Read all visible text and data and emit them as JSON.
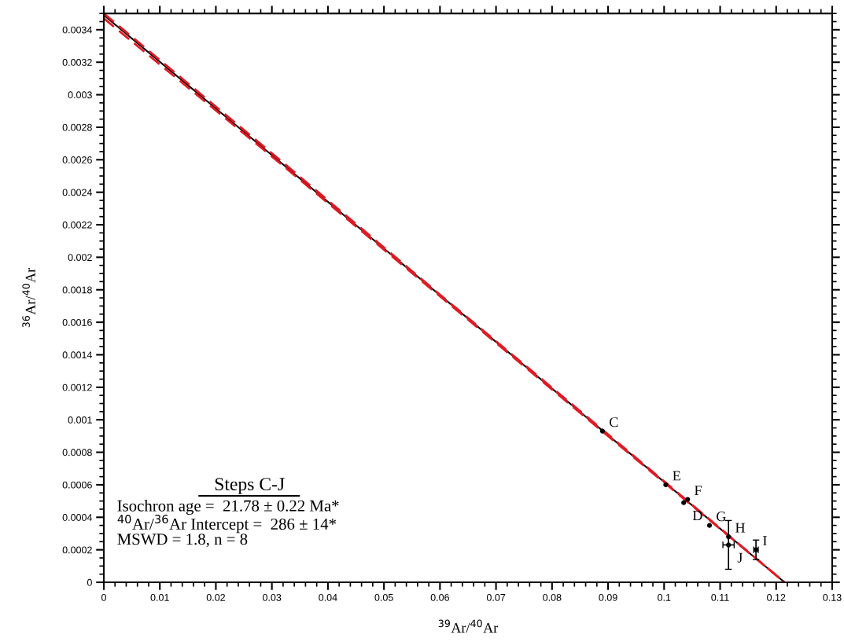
{
  "chart_data": {
    "type": "scatter",
    "xlabel": "$^{39}$Ar/$^{40}$Ar",
    "ylabel": "$^{36}$Ar/$^{40}$Ar",
    "xlim": [
      0,
      0.13
    ],
    "ylim": [
      0,
      0.0035
    ],
    "xticks": [
      0,
      0.01,
      0.02,
      0.03,
      0.04,
      0.05,
      0.06,
      0.07,
      0.08,
      0.09,
      0.1,
      0.11,
      0.12,
      0.13
    ],
    "yticks": [
      0,
      0.0002,
      0.0004,
      0.0006,
      0.0008,
      0.001,
      0.0012,
      0.0014,
      0.0016,
      0.0018,
      0.002,
      0.0022,
      0.0024,
      0.0026,
      0.0028,
      0.003,
      0.0032,
      0.0034
    ],
    "grid": false,
    "legend": false,
    "series": [
      {
        "type": "line",
        "color": "#000000",
        "line_style": "solid",
        "x": [
          0,
          0.1215
        ],
        "values": [
          0.00349,
          0
        ]
      },
      {
        "type": "line",
        "color": "#e01b24",
        "line_style": "dashed",
        "x": [
          0,
          0.03,
          0.06,
          0.09,
          0.1215
        ],
        "values": [
          0.0035,
          0.00264,
          0.00177,
          0.00091,
          0
        ]
      },
      {
        "type": "line",
        "color": "#e01b24",
        "line_style": "dashed",
        "x": [
          0,
          0.03,
          0.06,
          0.09,
          0.1215
        ],
        "values": [
          0.00347,
          0.00262,
          0.00176,
          0.0009,
          0
        ]
      },
      {
        "color": "#000000",
        "marker": "circle",
        "x": [
          0.089,
          0.1003,
          0.1042,
          0.1035,
          0.1081,
          0.1115,
          0.1115,
          0.1164
        ],
        "values": [
          0.00093,
          0.0006,
          0.00051,
          0.00049,
          0.00035,
          0.00028,
          0.00023,
          0.0002
        ],
        "errors": [
          null,
          null,
          null,
          null,
          null,
          null,
          0.00015,
          6e-05
        ],
        "xerrors": [
          null,
          null,
          null,
          null,
          null,
          null,
          0.001,
          0.0004
        ]
      }
    ],
    "annotations": [
      {
        "text": "C",
        "x": 0.089,
        "y": 0.00093
      },
      {
        "text": "E",
        "x": 0.1003,
        "y": 0.0006
      },
      {
        "text": "F",
        "x": 0.1042,
        "y": 0.00051
      },
      {
        "text": "D",
        "x": 0.1035,
        "y": 0.00049
      },
      {
        "text": "G",
        "x": 0.1081,
        "y": 0.00035
      },
      {
        "text": "H",
        "x": 0.1115,
        "y": 0.00028
      },
      {
        "text": "J",
        "x": 0.1115,
        "y": 0.00023
      },
      {
        "text": "I",
        "x": 0.1164,
        "y": 0.0002
      },
      "Steps C-J",
      "Isochron age =  21.78 ± 0.22 Ma*\n$^{40}$Ar/$^{36}$Ar Intercept =  286 ± 14*\nMSWD = 1.8, n = 8"
    ]
  }
}
